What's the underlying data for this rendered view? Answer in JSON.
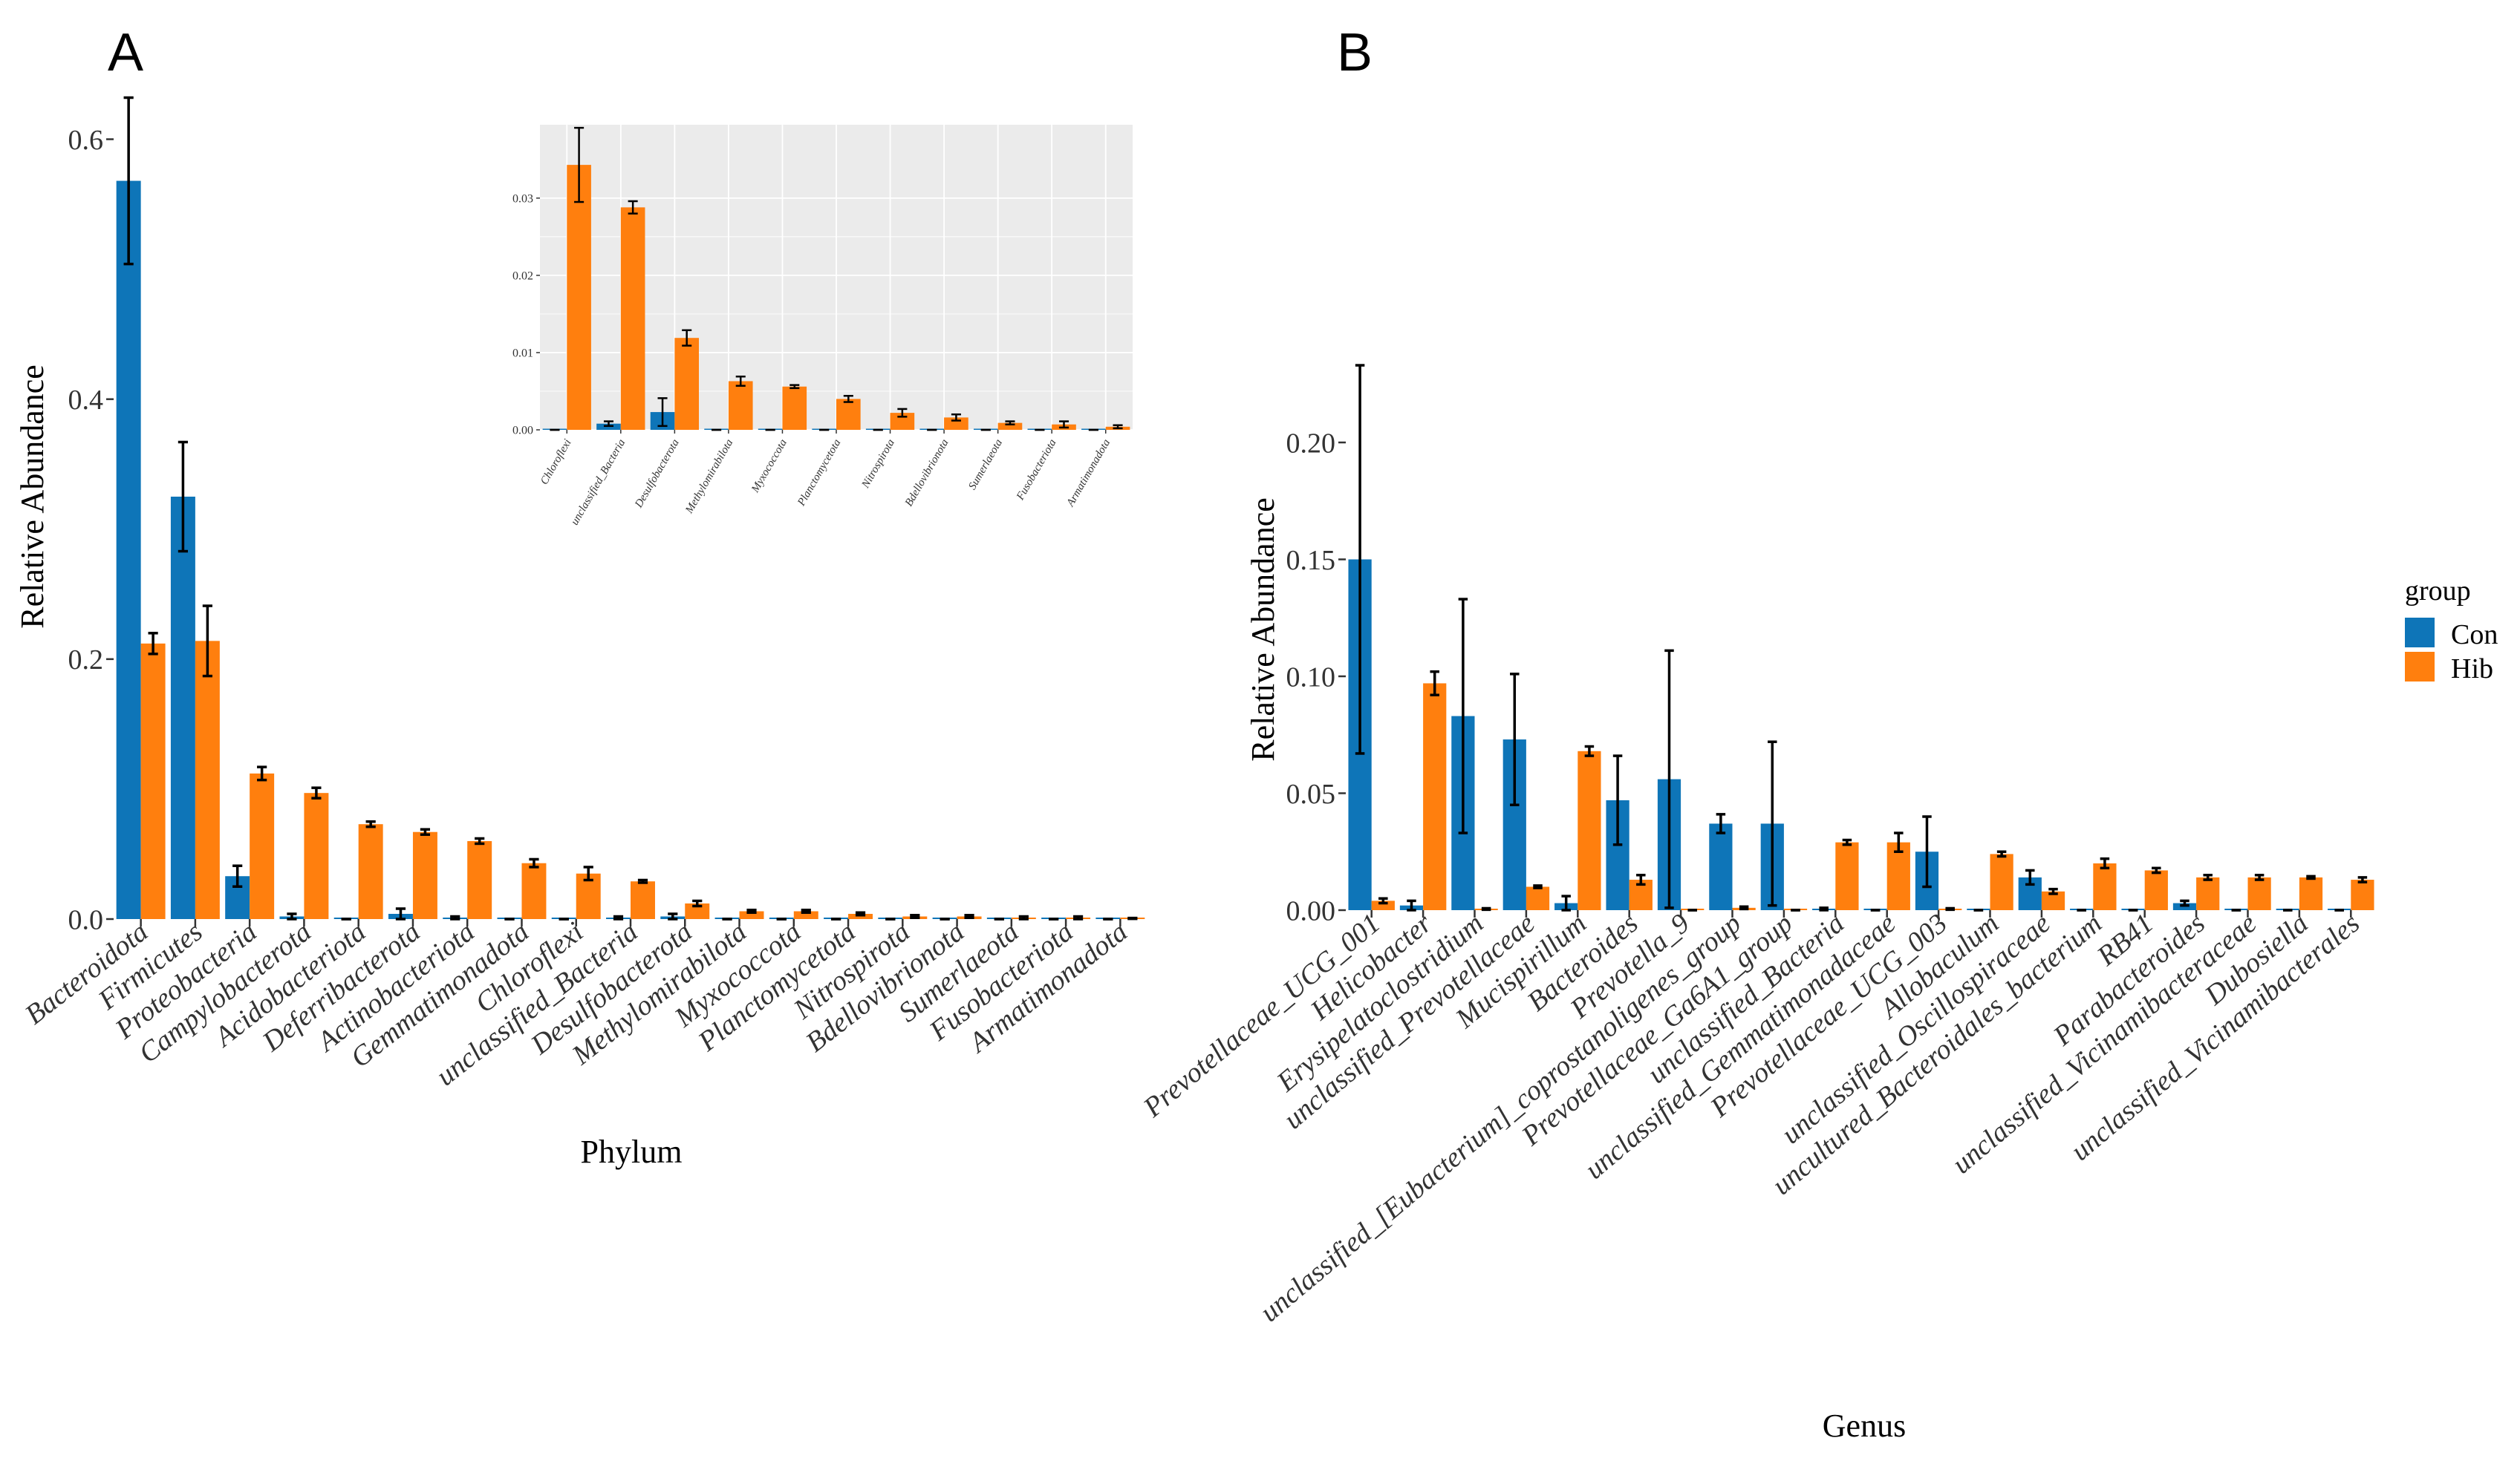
{
  "chart_data": [
    {
      "panel": "A",
      "type": "bar",
      "xlabel": "Phylum",
      "ylabel": "Relative Abundance",
      "ylim": [
        0,
        0.65
      ],
      "yticks": [
        "0.0",
        "0.2",
        "0.4",
        "0.6"
      ],
      "categories": [
        "Bacteroidota",
        "Firmicutes",
        "Proteobacteria",
        "Campylobacterota",
        "Acidobacteriota",
        "Deferribacterota",
        "Actinobacteriota",
        "Gemmatimonadota",
        "Chloroflexi",
        "unclassified_Bacteria",
        "Desulfobacterota",
        "Methylomirabilota",
        "Myxococcota",
        "Planctomycetota",
        "Nitrospirota",
        "Bdellovibrionota",
        "Sumerlaeota",
        "Fusobacteriota",
        "Armatimonadota"
      ],
      "series": [
        {
          "name": "Con",
          "values": [
            0.568,
            0.325,
            0.033,
            0.002,
            0.0,
            0.004,
            0.001,
            0.0,
            0.0,
            0.001,
            0.002,
            0.0,
            0.0,
            0.0,
            0.0,
            0.0,
            0.0,
            0.0,
            0.0
          ],
          "errors": [
            0.064,
            0.042,
            0.008,
            0.002,
            0.0,
            0.004,
            0.001,
            0.0,
            0.0,
            0.001,
            0.002,
            0.0,
            0.0,
            0.0,
            0.0,
            0.0,
            0.0,
            0.0,
            0.0
          ]
        },
        {
          "name": "Hib",
          "values": [
            0.212,
            0.214,
            0.112,
            0.097,
            0.073,
            0.067,
            0.06,
            0.043,
            0.035,
            0.029,
            0.012,
            0.006,
            0.006,
            0.004,
            0.002,
            0.002,
            0.001,
            0.001,
            0.0005
          ],
          "errors": [
            0.008,
            0.027,
            0.005,
            0.004,
            0.002,
            0.002,
            0.002,
            0.003,
            0.005,
            0.001,
            0.002,
            0.001,
            0.001,
            0.001,
            0.001,
            0.001,
            0.001,
            0.001,
            0.0003
          ]
        }
      ]
    },
    {
      "panel": "A (inset)",
      "type": "bar",
      "xlabel": "",
      "ylabel": "",
      "ylim": [
        0,
        0.0395
      ],
      "yticks": [
        "0.00",
        "0.01",
        "0.02",
        "0.03"
      ],
      "grid": true,
      "categories": [
        "Chloroflexi",
        "unclassified_Bacteria",
        "Desulfobacterota",
        "Methylomirabilota",
        "Myxococcota",
        "Planctomycetota",
        "Nitrospirota",
        "Bdellovibrionota",
        "Sumerlaeota",
        "Fusobacteriota",
        "Armatimonadota"
      ],
      "series": [
        {
          "name": "Con",
          "values": [
            0.0,
            0.0008,
            0.0023,
            0.0,
            0.0,
            0.0,
            0.0,
            0.0,
            0.0,
            0.0,
            0.0
          ],
          "errors": [
            0.0,
            0.0003,
            0.0018,
            0.0,
            0.0,
            0.0,
            0.0,
            0.0,
            0.0,
            0.0,
            0.0
          ]
        },
        {
          "name": "Hib",
          "values": [
            0.0343,
            0.0288,
            0.0119,
            0.0063,
            0.0056,
            0.004,
            0.0022,
            0.0016,
            0.0009,
            0.0007,
            0.0004
          ],
          "errors": [
            0.0048,
            0.0008,
            0.001,
            0.0006,
            0.0002,
            0.0004,
            0.0005,
            0.0004,
            0.0002,
            0.0004,
            0.0002
          ]
        }
      ]
    },
    {
      "panel": "B",
      "type": "bar",
      "xlabel": "Genus",
      "ylabel": "Relative Abundance",
      "ylim": [
        0,
        0.24
      ],
      "yticks": [
        "0.00",
        "0.05",
        "0.10",
        "0.15",
        "0.20"
      ],
      "categories": [
        "Prevotellaceae_UCG_001",
        "Helicobacter",
        "Erysipelatoclostridium",
        "unclassified_Prevotellaceae",
        "Mucispirillum",
        "Bacteroides",
        "Prevotella_9",
        "unclassified_[Eubacterium]_coprostanoligenes_group",
        "Prevotellaceae_Ga6A1_group",
        "unclassified_Bacteria",
        "unclassified_Gemmatimonadaceae",
        "Prevotellaceae_UCG_003",
        "Allobaculum",
        "unclassified_Oscillospiraceae",
        "uncultured_Bacteroidales_bacterium",
        "RB41",
        "Parabacteroides",
        "unclassified_Vicinamibacteraceae",
        "Dubosiella",
        "unclassified_Vicinamibacterales"
      ],
      "series": [
        {
          "name": "Con",
          "values": [
            0.15,
            0.002,
            0.083,
            0.073,
            0.003,
            0.047,
            0.056,
            0.037,
            0.037,
            0.0005,
            0.0,
            0.025,
            0.0,
            0.014,
            0.0,
            0.0,
            0.003,
            0.0,
            0.0,
            0.0
          ],
          "errors": [
            0.083,
            0.002,
            0.05,
            0.028,
            0.003,
            0.019,
            0.055,
            0.004,
            0.035,
            0.0005,
            0.0,
            0.015,
            0.0,
            0.003,
            0.0,
            0.0,
            0.001,
            0.0,
            0.0,
            0.0
          ]
        },
        {
          "name": "Hib",
          "values": [
            0.004,
            0.097,
            0.0005,
            0.01,
            0.068,
            0.013,
            0.0,
            0.001,
            0.0,
            0.029,
            0.029,
            0.0005,
            0.024,
            0.008,
            0.02,
            0.017,
            0.014,
            0.014,
            0.014,
            0.013
          ],
          "errors": [
            0.001,
            0.005,
            0.0003,
            0.0005,
            0.002,
            0.002,
            0.0,
            0.0005,
            0.0,
            0.001,
            0.004,
            0.0003,
            0.001,
            0.001,
            0.002,
            0.001,
            0.001,
            0.001,
            0.0005,
            0.001
          ]
        }
      ]
    }
  ],
  "panel_labels": {
    "a": "A",
    "b": "B"
  },
  "legend": {
    "title": "group",
    "items": [
      {
        "name": "Con",
        "color": "#0e75b8"
      },
      {
        "name": "Hib",
        "color": "#ff7f0e"
      }
    ]
  },
  "colors": {
    "Con": "#0e75b8",
    "Hib": "#ff7f0e",
    "inset_bg": "#ebebeb",
    "grid": "#ffffff"
  }
}
